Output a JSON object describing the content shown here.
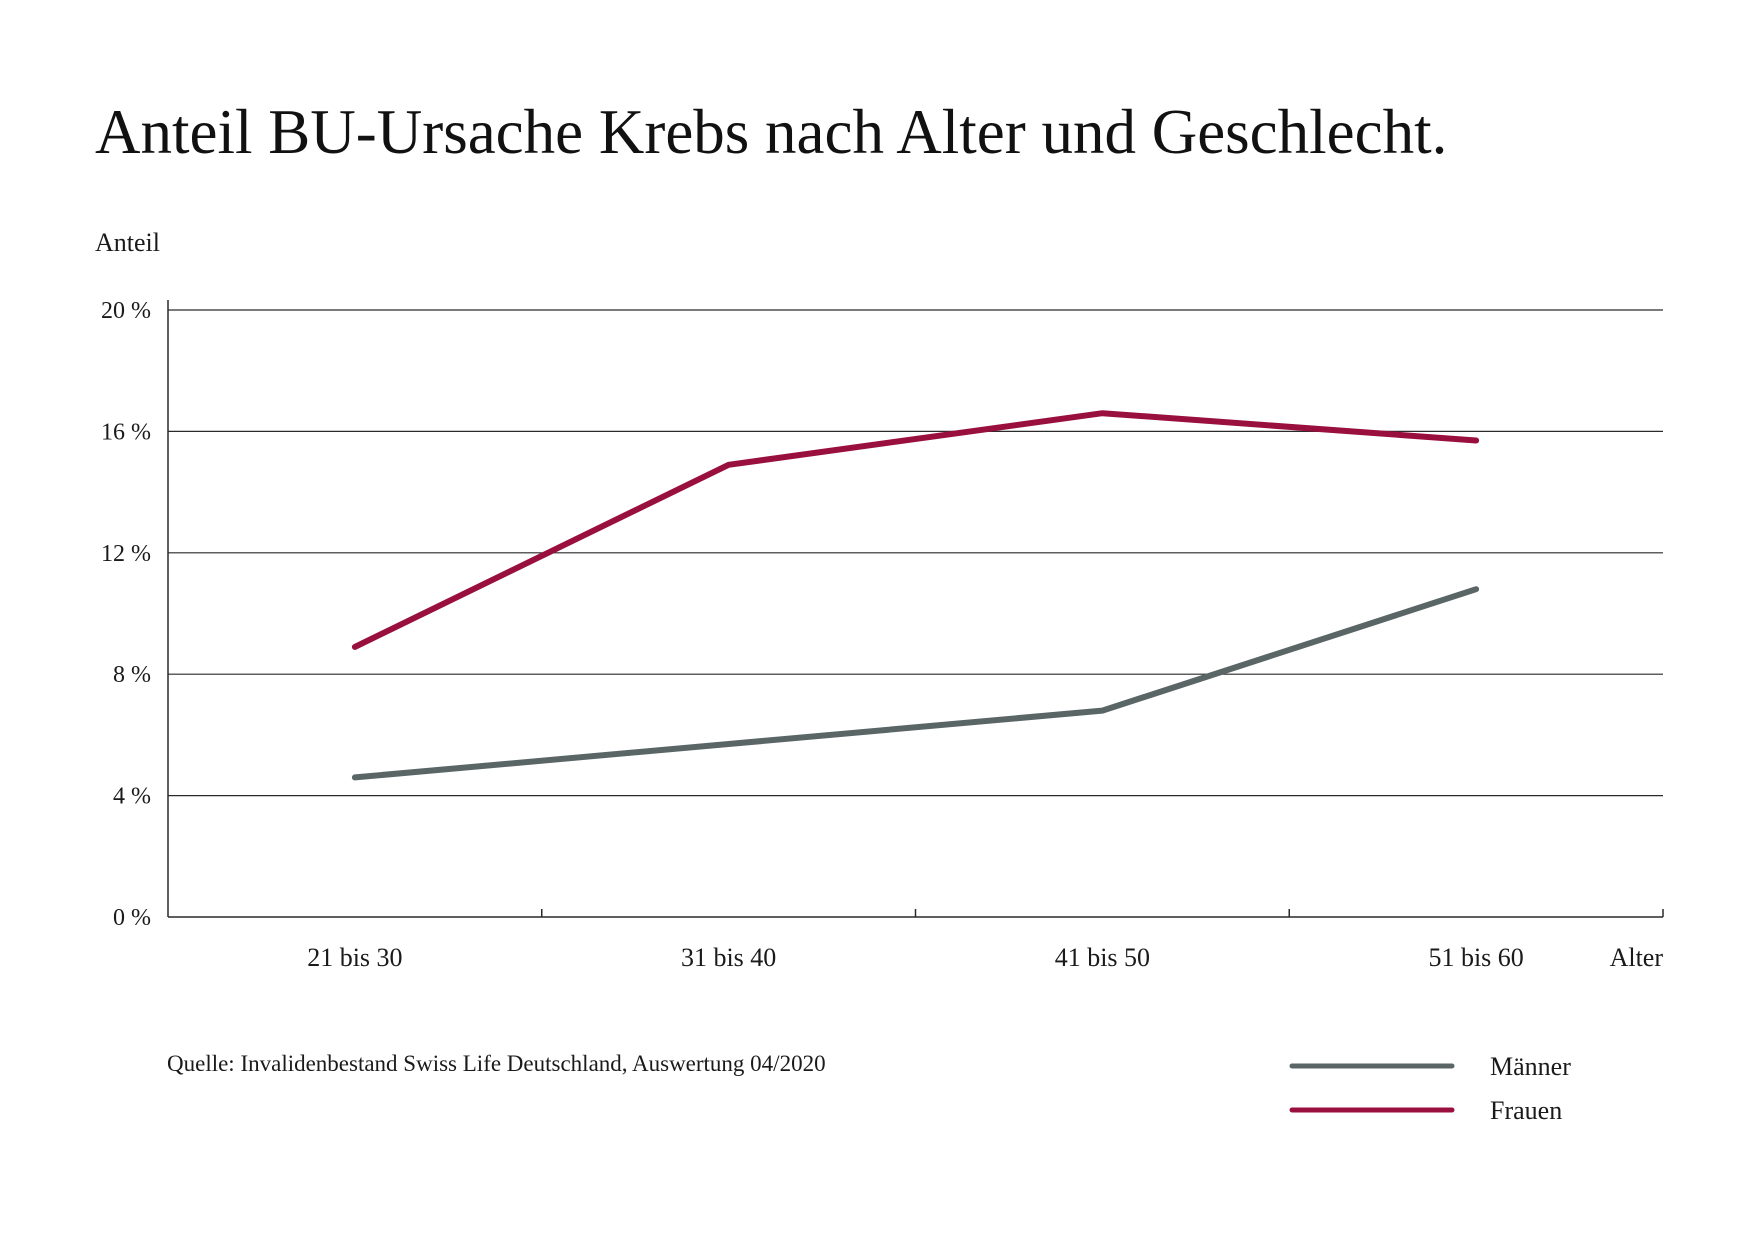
{
  "chart_data": {
    "type": "line",
    "title": "Anteil BU-Ursache Krebs nach Alter und Geschlecht.",
    "ylabel": "Anteil",
    "xlabel": "Alter",
    "categories": [
      "21 bis 30",
      "31 bis 40",
      "41 bis 50",
      "51 bis 60"
    ],
    "ylim": [
      0,
      20
    ],
    "yticks": [
      0,
      4,
      8,
      12,
      16,
      20
    ],
    "ytick_suffix": " %",
    "grid": true,
    "legend_position": "bottom-right",
    "series": [
      {
        "name": "Männer",
        "values": [
          4.6,
          5.7,
          6.8,
          10.8
        ],
        "color": "#5a6566"
      },
      {
        "name": "Frauen",
        "values": [
          8.9,
          14.9,
          16.6,
          15.7
        ],
        "color": "#990f3d"
      }
    ],
    "source": "Quelle: Invalidenbestand Swiss Life Deutschland, Auswertung 04/2020"
  }
}
